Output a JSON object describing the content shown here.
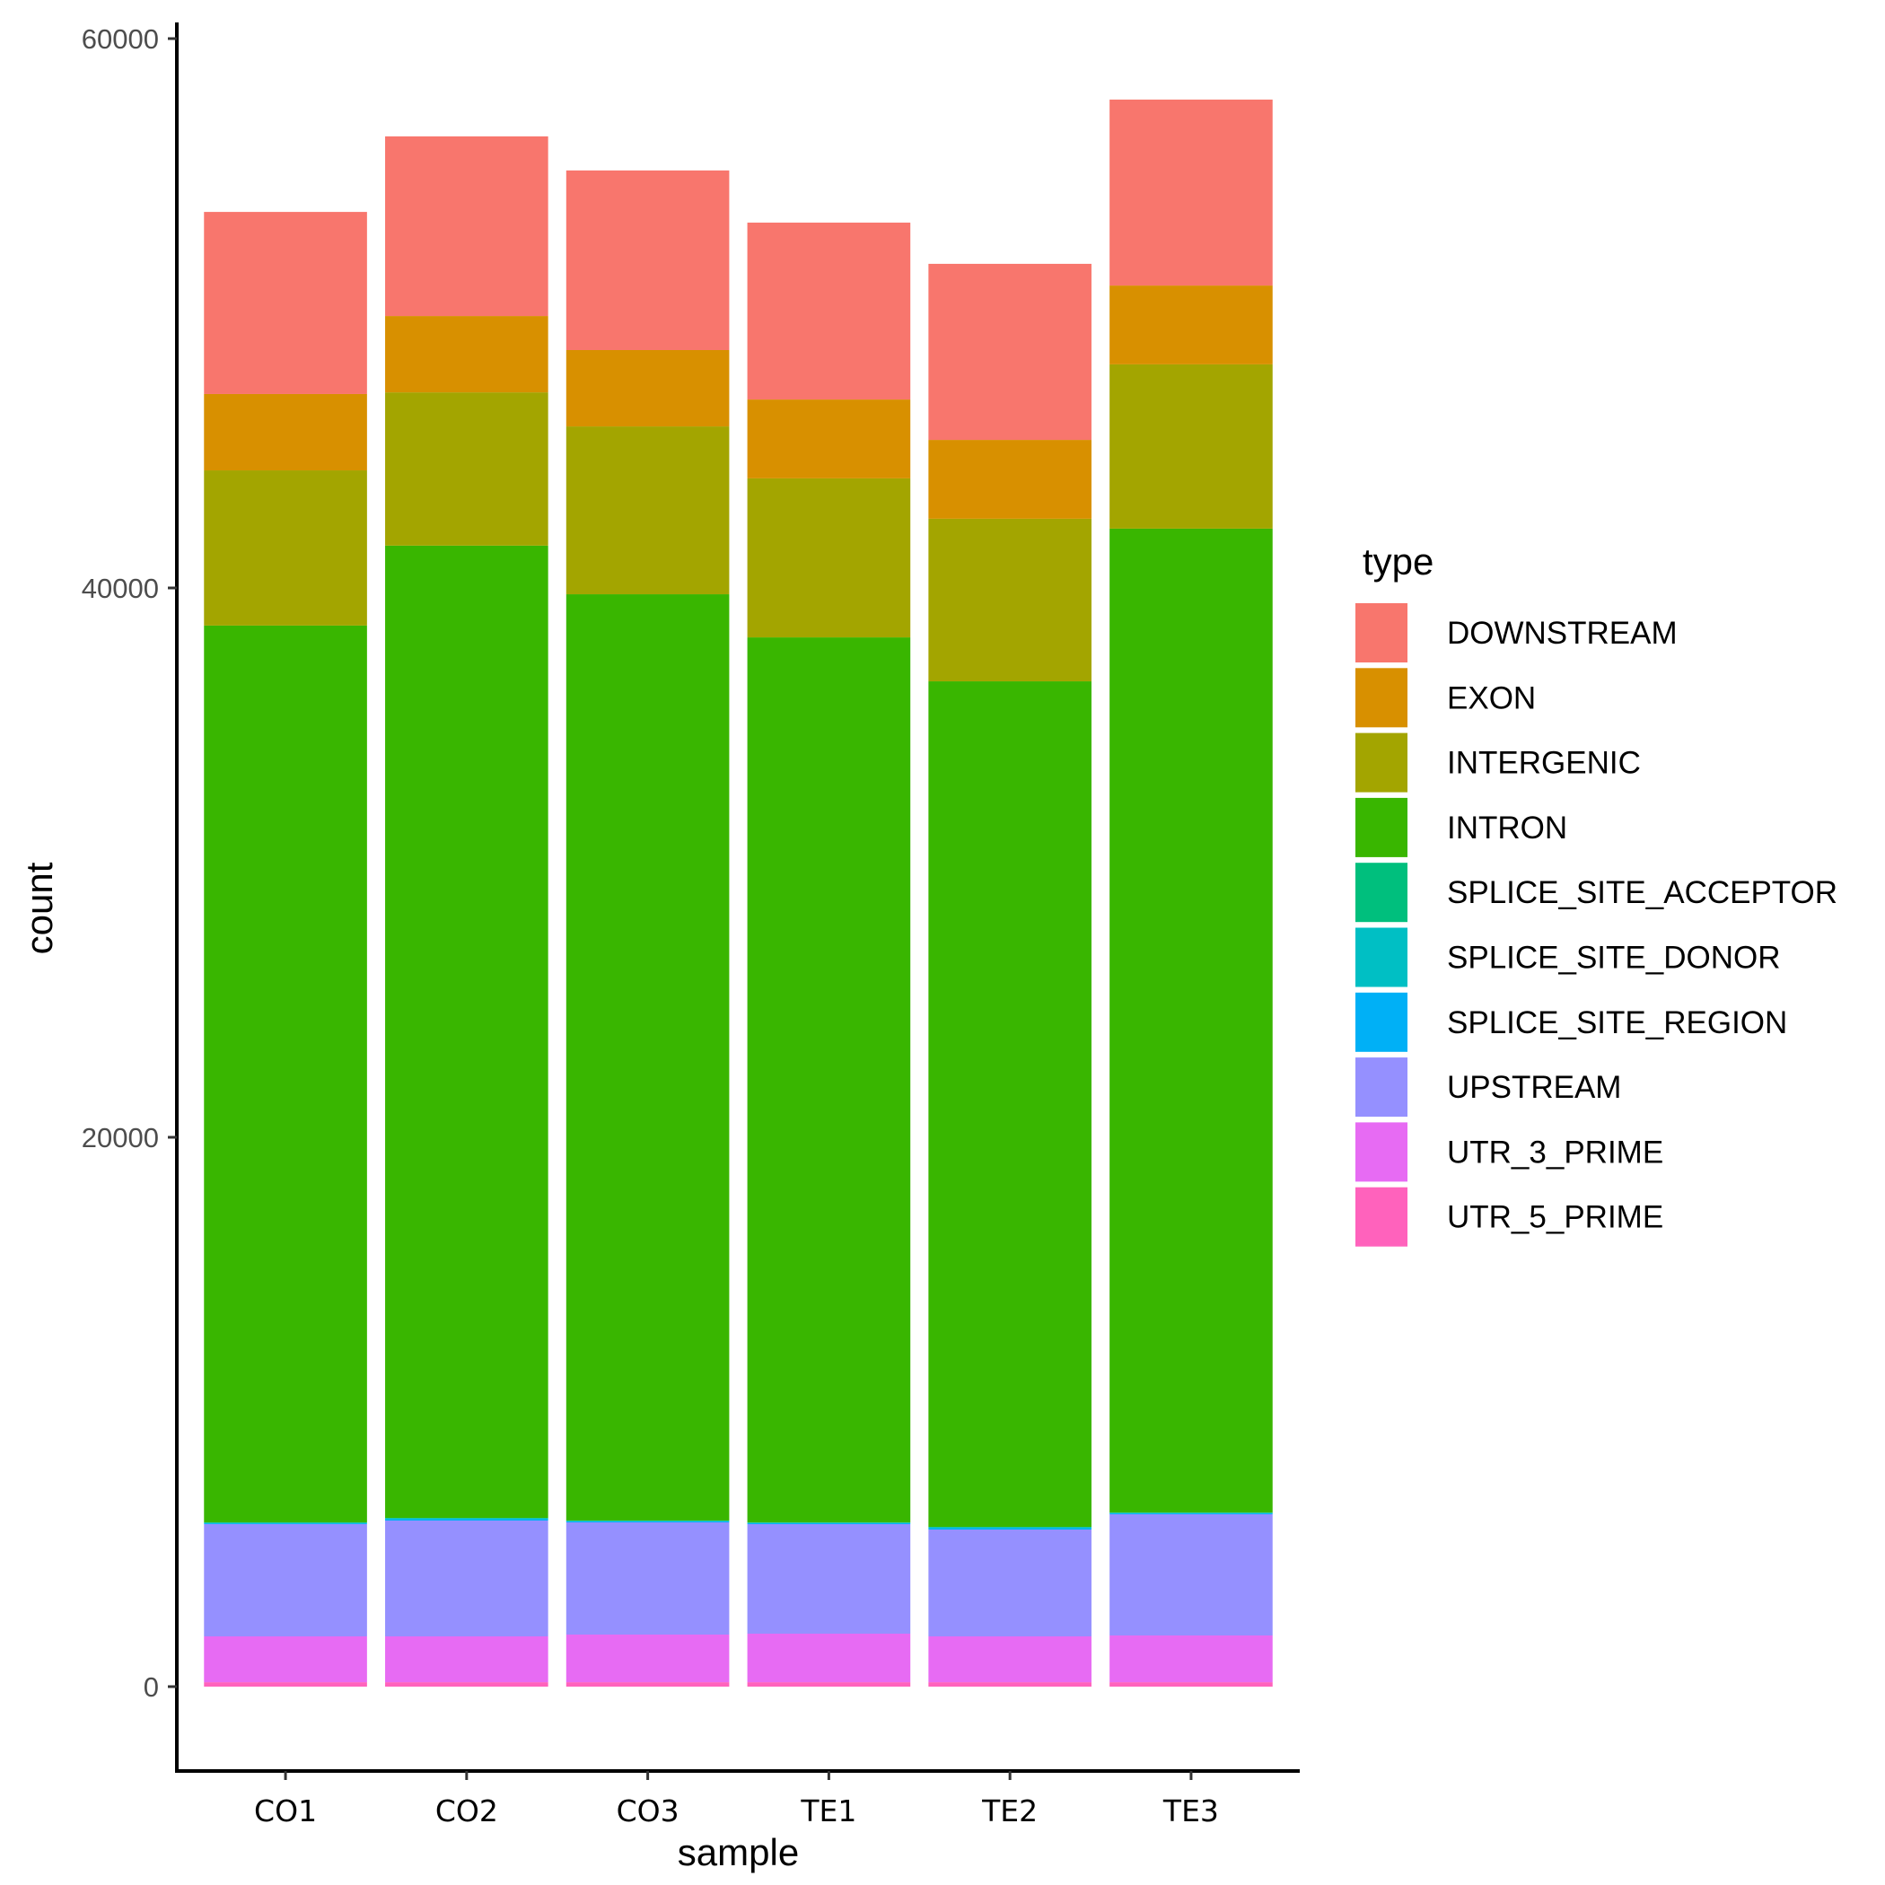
{
  "chart_data": {
    "type": "bar",
    "stacked": true,
    "title": "",
    "xlabel": "sample",
    "ylabel": "count",
    "ylim": [
      -3900,
      62000
    ],
    "yticks": [
      0,
      20000,
      40000,
      60000
    ],
    "ytick_labels": [
      "0",
      "20000",
      "40000",
      "60000"
    ],
    "grid": false,
    "legend_title": "type",
    "legend_position": "right",
    "categories": [
      "CO1",
      "CO2",
      "CO3",
      "TE1",
      "TE2",
      "TE3"
    ],
    "series": [
      {
        "name": "DOWNSTREAM",
        "color": "#F8766D",
        "values": [
          6630,
          6540,
          6540,
          6440,
          6410,
          6770
        ]
      },
      {
        "name": "EXON",
        "color": "#D89000",
        "values": [
          2780,
          2780,
          2780,
          2870,
          2870,
          2870
        ]
      },
      {
        "name": "INTERGENIC",
        "color": "#A3A500",
        "values": [
          5650,
          5580,
          6110,
          5790,
          5920,
          5980
        ]
      },
      {
        "name": "INTRON",
        "color": "#39B600",
        "values": [
          32650,
          35396,
          33724,
          32220,
          30783,
          35820
        ]
      },
      {
        "name": "SPLICE_SITE_ACCEPTOR",
        "color": "#00BF7D",
        "values": [
          10,
          13,
          11,
          10,
          13,
          10
        ]
      },
      {
        "name": "SPLICE_SITE_DONOR",
        "color": "#00BFC4",
        "values": [
          25,
          35,
          20,
          20,
          35,
          20
        ]
      },
      {
        "name": "SPLICE_SITE_REGION",
        "color": "#00B0F6",
        "values": [
          30,
          50,
          35,
          35,
          50,
          35
        ]
      },
      {
        "name": "UPSTREAM",
        "color": "#9590FF",
        "values": [
          4085,
          4216,
          4085,
          3987,
          3889,
          4412
        ]
      },
      {
        "name": "UTR_3_PRIME",
        "color": "#E76BF3",
        "values": [
          1670,
          1670,
          1735,
          1768,
          1670,
          1703
        ]
      },
      {
        "name": "UTR_5_PRIME",
        "color": "#FF62BC",
        "values": [
          160,
          160,
          160,
          160,
          160,
          160
        ]
      }
    ]
  }
}
